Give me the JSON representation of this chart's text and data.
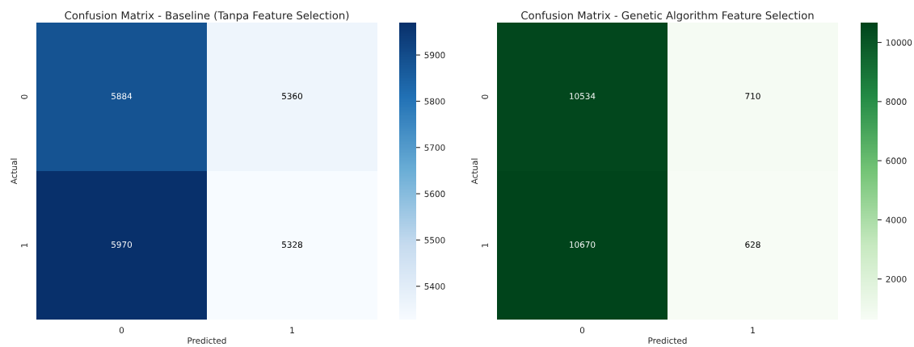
{
  "chart_data": [
    {
      "type": "heatmap",
      "title": "Confusion Matrix - Baseline (Tanpa Feature Selection)",
      "xlabel": "Predicted",
      "ylabel": "Actual",
      "categories": [
        "0",
        "1"
      ],
      "y_categories": [
        "0",
        "1"
      ],
      "cells": [
        [
          5884,
          5360
        ],
        [
          5970,
          5328
        ]
      ],
      "data_labels": true,
      "clim": [
        5328,
        5970
      ],
      "cticks": [
        5400,
        5500,
        5600,
        5700,
        5800,
        5900
      ],
      "colors": [
        "#f7fbff",
        "#c6dbef",
        "#6baed6",
        "#2171b5",
        "#08306b"
      ]
    },
    {
      "type": "heatmap",
      "title": "Confusion Matrix - Genetic Algorithm Feature Selection",
      "xlabel": "Predicted",
      "ylabel": "Actual",
      "categories": [
        "0",
        "1"
      ],
      "y_categories": [
        "0",
        "1"
      ],
      "cells": [
        [
          10534,
          710
        ],
        [
          10670,
          628
        ]
      ],
      "data_labels": true,
      "clim": [
        628,
        10670
      ],
      "cticks": [
        2000,
        4000,
        6000,
        8000,
        10000
      ],
      "colors": [
        "#f7fcf5",
        "#c7e9c0",
        "#74c476",
        "#238b45",
        "#00441b"
      ]
    }
  ]
}
